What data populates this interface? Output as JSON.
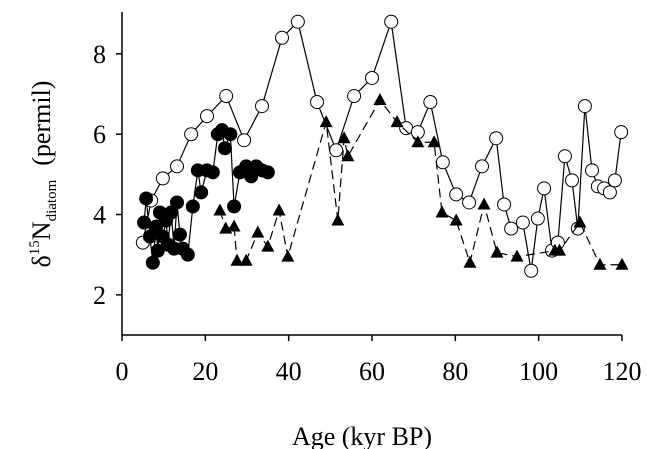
{
  "chart_data": {
    "type": "line",
    "xlabel": "Age (kyr BP)",
    "ylabel_parts": [
      "δ",
      "15",
      "N",
      "diatom",
      "(permil)"
    ],
    "xlim": [
      0,
      120
    ],
    "xticks": [
      0,
      20,
      40,
      60,
      80,
      100,
      120
    ],
    "ylim": [
      1,
      9
    ],
    "yticks": [
      2,
      4,
      6,
      8
    ],
    "series": [
      {
        "marker": "open-circle",
        "color": "#000000",
        "dash": false,
        "x": [
          5.0,
          7.0,
          9.8,
          13.2,
          16.6,
          20.4,
          25.0,
          29.3,
          33.6,
          38.4,
          42.2,
          46.8,
          51.4,
          55.7,
          60.0,
          64.6,
          68.2,
          71.0,
          74.0,
          77.0,
          80.2,
          83.3,
          86.4,
          89.8,
          91.7,
          93.4,
          96.2,
          98.2,
          99.8,
          101.3,
          103.2,
          104.6,
          106.3,
          108.0,
          109.4,
          111.1,
          112.8,
          114.2,
          115.7,
          117.1,
          118.3,
          119.8
        ],
        "values": [
          3.3,
          4.35,
          4.9,
          5.2,
          6.0,
          6.45,
          6.95,
          5.85,
          6.7,
          8.4,
          8.8,
          6.8,
          5.6,
          6.95,
          7.4,
          8.8,
          6.15,
          6.05,
          6.8,
          5.3,
          4.5,
          4.3,
          5.2,
          5.9,
          4.25,
          3.65,
          3.8,
          2.6,
          3.9,
          4.65,
          3.1,
          3.3,
          5.45,
          4.85,
          3.65,
          6.7,
          5.1,
          4.7,
          4.65,
          4.55,
          4.85,
          6.05
        ]
      },
      {
        "marker": "filled-circle",
        "color": "#000000",
        "dash": false,
        "x": [
          5.3,
          5.8,
          6.7,
          7.4,
          8.2,
          8.6,
          9.1,
          9.8,
          10.6,
          11.0,
          11.8,
          12.5,
          13.2,
          13.9,
          14.6,
          15.8,
          17.0,
          18.2,
          19.0,
          20.4,
          21.8,
          23.0,
          24.0,
          24.7,
          26.0,
          26.9,
          28.3,
          29.8,
          31.0,
          32.2,
          33.6,
          35.0
        ],
        "values": [
          3.8,
          4.4,
          3.45,
          2.8,
          3.7,
          3.1,
          4.05,
          3.45,
          3.85,
          3.25,
          4.05,
          3.15,
          4.3,
          3.5,
          3.15,
          3.0,
          4.2,
          5.1,
          4.55,
          5.1,
          5.05,
          6.0,
          6.1,
          5.65,
          6.0,
          4.2,
          5.05,
          5.2,
          4.95,
          5.2,
          5.1,
          5.05
        ]
      },
      {
        "marker": "triangle",
        "color": "#000000",
        "dash": true,
        "x": [
          23.5,
          24.9,
          26.9,
          27.6,
          29.8,
          32.6,
          35.0,
          37.7,
          39.8,
          49.0,
          51.8,
          53.3,
          54.2,
          61.9,
          66.0,
          71.0,
          74.9,
          76.8,
          80.2,
          83.5,
          86.9,
          90.0,
          94.8,
          103.9,
          105.0,
          109.9,
          114.7,
          120.0
        ],
        "values": [
          4.1,
          3.65,
          3.7,
          2.85,
          2.85,
          3.55,
          3.2,
          4.1,
          2.95,
          6.3,
          3.85,
          5.9,
          5.45,
          6.85,
          6.3,
          5.8,
          5.8,
          4.05,
          3.85,
          2.8,
          4.25,
          3.05,
          2.95,
          3.1,
          3.1,
          3.8,
          2.75,
          2.75
        ]
      }
    ]
  }
}
